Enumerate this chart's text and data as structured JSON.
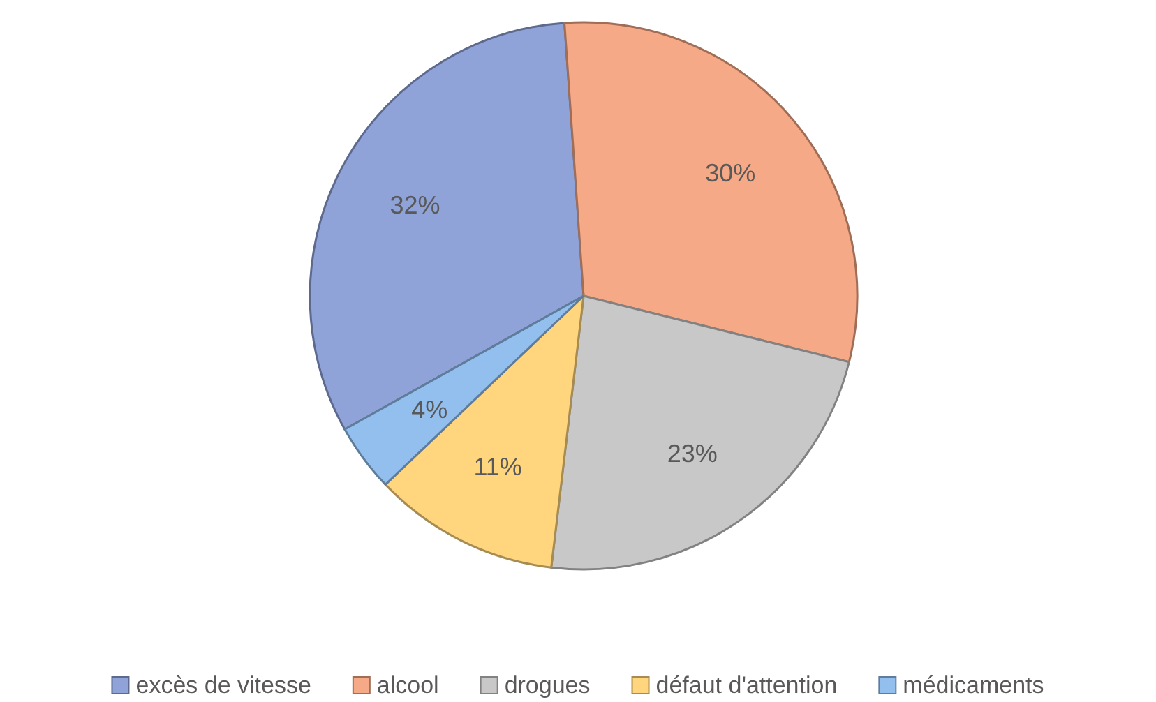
{
  "chart_data": {
    "type": "pie",
    "categories": [
      "excès de vitesse",
      "alcool",
      "drogues",
      "défaut d'attention",
      "médicaments"
    ],
    "values": [
      32,
      30,
      23,
      11,
      4
    ],
    "colors": [
      "#8fa3d9",
      "#f5a986",
      "#c8c8c8",
      "#ffd57e",
      "#92bfee"
    ],
    "value_labels": [
      "32%",
      "30%",
      "23%",
      "11%",
      "4%"
    ],
    "legend": "bottom"
  }
}
